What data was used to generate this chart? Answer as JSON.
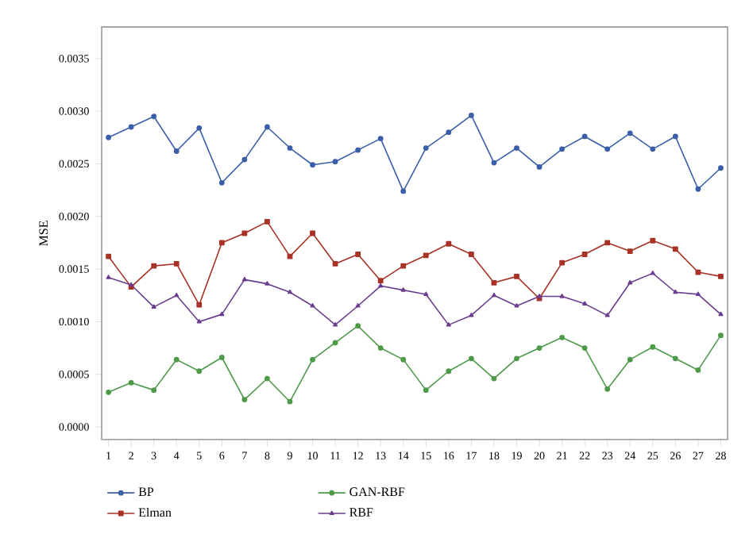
{
  "chart_data": {
    "type": "line",
    "ylabel": "MSE",
    "x": [
      1,
      2,
      3,
      4,
      5,
      6,
      7,
      8,
      9,
      10,
      11,
      12,
      13,
      14,
      15,
      16,
      17,
      18,
      19,
      20,
      21,
      22,
      23,
      24,
      25,
      26,
      27,
      28
    ],
    "xlim": [
      0.7,
      28.3
    ],
    "xticks": [
      1,
      2,
      3,
      4,
      5,
      6,
      7,
      8,
      9,
      10,
      11,
      12,
      13,
      14,
      15,
      16,
      17,
      18,
      19,
      20,
      21,
      22,
      23,
      24,
      25,
      26,
      27,
      28
    ],
    "ylim": [
      -0.00012,
      0.0038
    ],
    "yticks": [
      {
        "value": 0,
        "label": "0.0000"
      },
      {
        "value": 0.0005,
        "label": "0.0005"
      },
      {
        "value": 0.001,
        "label": "0.0010"
      },
      {
        "value": 0.0015,
        "label": "0.0015"
      },
      {
        "value": 0.002,
        "label": "0.0020"
      },
      {
        "value": 0.0025,
        "label": "0.0025"
      },
      {
        "value": 0.003,
        "label": "0.0030"
      },
      {
        "value": 0.0035,
        "label": "0.0035"
      }
    ],
    "legend": "bottom",
    "line_style": "solid",
    "series": [
      {
        "name": "BP",
        "color": "#3a5fa8",
        "marker": "circle",
        "values": [
          0.00275,
          0.00285,
          0.00295,
          0.00262,
          0.00284,
          0.00232,
          0.00254,
          0.00285,
          0.00265,
          0.00249,
          0.00252,
          0.00263,
          0.00274,
          0.00224,
          0.00265,
          0.0028,
          0.00296,
          0.00251,
          0.00265,
          0.00247,
          0.00264,
          0.00276,
          0.00264,
          0.00279,
          0.00264,
          0.00276,
          0.00226,
          0.00246
        ]
      },
      {
        "name": "Elman",
        "color": "#a83226",
        "marker": "square",
        "values": [
          0.00162,
          0.00133,
          0.00153,
          0.00155,
          0.00116,
          0.00175,
          0.00184,
          0.00195,
          0.00162,
          0.00184,
          0.00155,
          0.00164,
          0.00139,
          0.00153,
          0.00163,
          0.00174,
          0.00164,
          0.00137,
          0.00143,
          0.00122,
          0.00156,
          0.00164,
          0.00175,
          0.00167,
          0.00177,
          0.00169,
          0.00147,
          0.00143
        ]
      },
      {
        "name": "GAN-RBF",
        "color": "#4d9a48",
        "marker": "circle",
        "values": [
          0.00033,
          0.00042,
          0.00035,
          0.00064,
          0.00053,
          0.00066,
          0.00026,
          0.00046,
          0.00024,
          0.00064,
          0.0008,
          0.00096,
          0.00075,
          0.00064,
          0.00035,
          0.00053,
          0.00065,
          0.00046,
          0.00065,
          0.00075,
          0.00085,
          0.00075,
          0.00036,
          0.00064,
          0.00076,
          0.00065,
          0.00054,
          0.00087
        ]
      },
      {
        "name": "RBF",
        "color": "#6a3d8f",
        "marker": "triangle",
        "values": [
          0.00142,
          0.00135,
          0.00114,
          0.00125,
          0.001,
          0.00107,
          0.0014,
          0.00136,
          0.00128,
          0.00115,
          0.00097,
          0.00115,
          0.00134,
          0.0013,
          0.00126,
          0.00097,
          0.00106,
          0.00125,
          0.00115,
          0.00124,
          0.00124,
          0.00117,
          0.00106,
          0.00137,
          0.00146,
          0.00128,
          0.00126,
          0.00107
        ]
      }
    ]
  }
}
